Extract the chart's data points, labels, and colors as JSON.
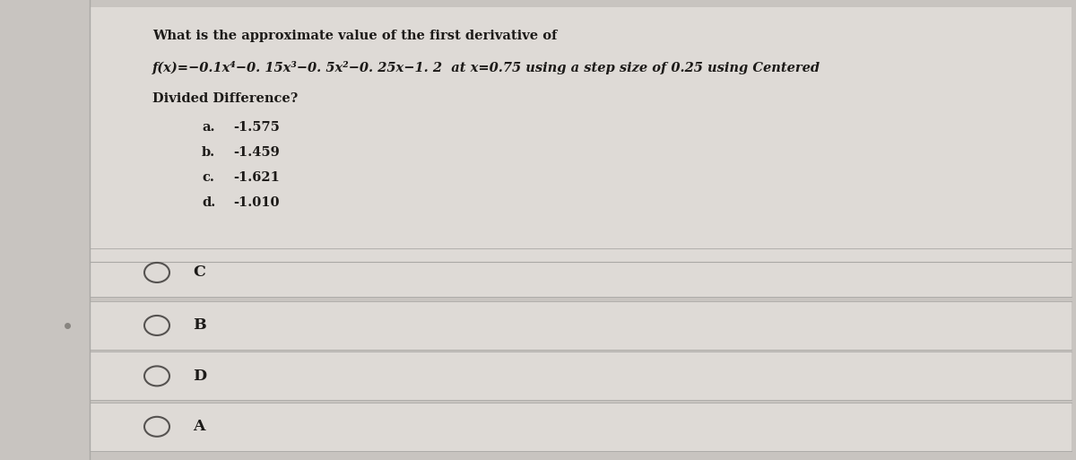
{
  "bg_color": "#c8c4c0",
  "card_color": "#dedad6",
  "row_color": "#d8d4d0",
  "line1": "What is the approximate value of the first derivative of",
  "line2": "f(x)=-0.1x⁴-0. 15x³-0. 5x²-0. 25x-1. 2  at x=0.75 using a step size of 0.25 using Centered",
  "line3": "Divided Difference?",
  "choices": [
    {
      "label": "a.",
      "value": "-1.575"
    },
    {
      "label": "b.",
      "value": "-1.459"
    },
    {
      "label": "c.",
      "value": "-1.621"
    },
    {
      "label": "d.",
      "value": "-1.010"
    }
  ],
  "answer_options": [
    "C",
    "B",
    "D",
    "A"
  ],
  "sep_color": "#aaa8a5",
  "text_color": "#1c1a18",
  "radio_color": "#555250",
  "text_fontsize": 10.5,
  "choice_fontsize": 10.5,
  "answer_fontsize": 12.5
}
